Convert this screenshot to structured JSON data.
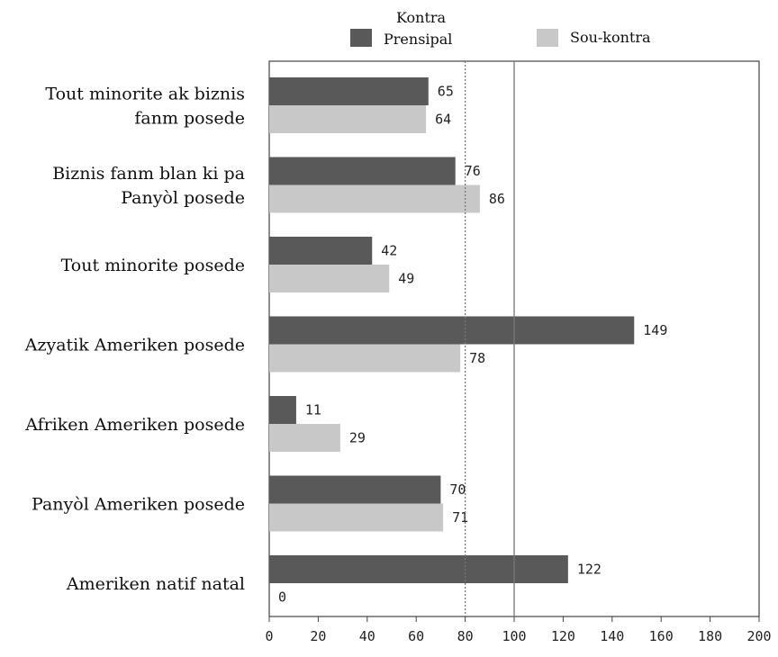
{
  "chart_data": {
    "type": "bar",
    "orientation": "horizontal",
    "categories": [
      [
        "Tout minorite ak biznis",
        "fanm posede"
      ],
      [
        "Biznis fanm blan ki pa",
        "Panyòl posede"
      ],
      [
        "Tout minorite posede"
      ],
      [
        "Azyatik Ameriken posede"
      ],
      [
        "Afriken Ameriken posede"
      ],
      [
        "Panyòl Ameriken posede"
      ],
      [
        "Ameriken natif natal"
      ]
    ],
    "series": [
      {
        "name": [
          "Kontra",
          "Prensipal"
        ],
        "color": "#595959",
        "values": [
          65,
          76,
          42,
          149,
          11,
          70,
          122
        ]
      },
      {
        "name": [
          "Sou-kontra"
        ],
        "color": "#c8c8c8",
        "values": [
          64,
          86,
          49,
          78,
          29,
          71,
          0
        ]
      }
    ],
    "xlim": [
      0,
      200
    ],
    "xticks": [
      0,
      20,
      40,
      60,
      80,
      100,
      120,
      140,
      160,
      180,
      200
    ],
    "reference_lines": [
      {
        "x": 80,
        "style": "dotted"
      },
      {
        "x": 100,
        "style": "solid"
      }
    ],
    "legend_position": "top",
    "grid": false
  }
}
